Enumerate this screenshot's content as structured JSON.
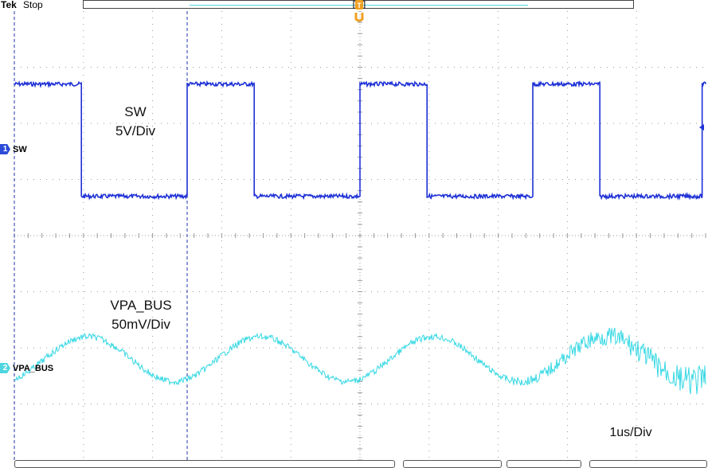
{
  "header": {
    "brand": "Tek",
    "acq_status": "Stop",
    "trigger_pos_glyph": "[ ]",
    "trigger_label": "U"
  },
  "channels": [
    {
      "num": "1",
      "label": "SW",
      "color": "#2b4bd8"
    },
    {
      "num": "2",
      "label": "VPA_BUS",
      "color": "#4dd6df"
    }
  ],
  "annotations": {
    "sw_name": "SW",
    "sw_scale": "5V/Div",
    "vpa_name": "VPA_BUS",
    "vpa_scale": "50mV/Div",
    "timebase": "1us/Div"
  },
  "colors": {
    "grid": "#9a9a9a",
    "ch1": "#1f32d6",
    "ch2": "#36d8e4",
    "cursor": "#2233aa",
    "trigger": "#f0a020"
  },
  "chart_data": {
    "type": "line",
    "x_divisions": 10,
    "y_divisions": 8,
    "series": [
      {
        "name": "SW",
        "transitions_div": [
          [
            0.0,
            "high"
          ],
          [
            0.97,
            "low"
          ],
          [
            2.5,
            "high"
          ],
          [
            3.47,
            "low"
          ],
          [
            5.0,
            "high"
          ],
          [
            5.97,
            "low"
          ],
          [
            7.5,
            "high"
          ],
          [
            8.47,
            "low"
          ],
          [
            9.95,
            "high"
          ]
        ],
        "high_div": 2.7,
        "low_div": 0.7
      },
      {
        "name": "VPA_BUS",
        "period_div": 2.5,
        "center_div": -2.2,
        "amplitude_div": 0.4
      }
    ]
  }
}
